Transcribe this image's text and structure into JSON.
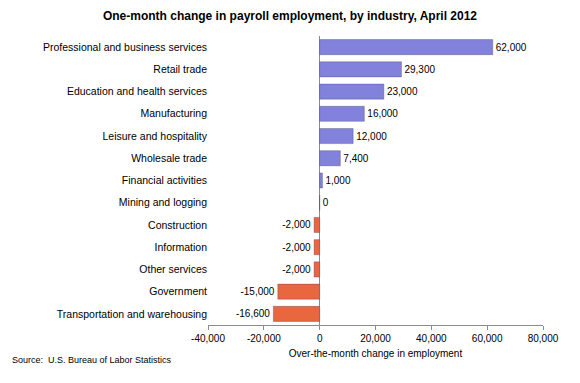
{
  "chart_data": {
    "type": "bar",
    "orientation": "horizontal",
    "title": "One-month change in payroll employment, by industry, April 2012",
    "x_label": "Over-the-month change in employment",
    "annotations": [
      "Source:  U.S. Bureau of Labor Statistics"
    ],
    "categories": [
      "Professional and business services",
      "Retail trade",
      "Education and health services",
      "Manufacturing",
      "Leisure and hospitality",
      "Wholesale trade",
      "Financial activities",
      "Mining and logging",
      "Construction",
      "Information",
      "Other services",
      "Government",
      "Transportation and warehousing"
    ],
    "values": [
      62000,
      29300,
      23000,
      16000,
      12000,
      7400,
      1000,
      0,
      -2000,
      -2000,
      -2000,
      -15000,
      -16600
    ],
    "value_labels": [
      "62,000",
      "29,300",
      "23,000",
      "16,000",
      "12,000",
      "7,400",
      "1,000",
      "0",
      "-2,000",
      "-2,000",
      "-2,000",
      "-15,000",
      "-16,600"
    ],
    "colors": [
      "#8282DC",
      "#8282DC",
      "#8282DC",
      "#8282DC",
      "#8282DC",
      "#8282DC",
      "#8282DC",
      "#8282DC",
      "#E8673F",
      "#E8673F",
      "#E8673F",
      "#E8673F",
      "#E8673F"
    ],
    "data_labels": true,
    "xlim": [
      -40000,
      80000
    ],
    "xticks": [
      {
        "value": -40000,
        "label": "-40,000"
      },
      {
        "value": -20000,
        "label": "-20,000"
      },
      0,
      {
        "value": 20000,
        "label": "20,000"
      },
      {
        "value": 40000,
        "label": "40,000"
      },
      {
        "value": 60000,
        "label": "60,000"
      },
      {
        "value": 80000,
        "label": "80,000"
      }
    ],
    "grid": false
  }
}
